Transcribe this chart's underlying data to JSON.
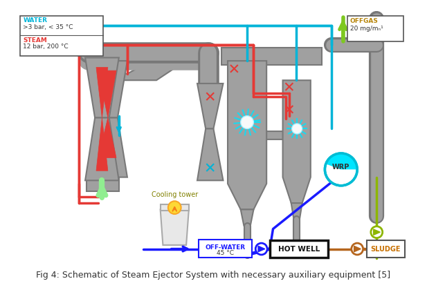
{
  "title": "Fig 4: Schematic of Steam Ejector System with necessary auxiliary equipment [5]",
  "title_fontsize": 9,
  "title_color": "#333333",
  "background_color": "#ffffff",
  "legend_water_l1": "WATER",
  "legend_water_l2": ">3 bar, < 35 °C",
  "legend_steam_l1": "STEAM",
  "legend_steam_l2": "12 bar, 200 °C",
  "legend_offgas_l1": "OFFGAS",
  "legend_offgas_l2": "20 mg/mₙ¹",
  "legend_offwater_l1": "OFF-WATER",
  "legend_offwater_l2": "45 °C",
  "legend_hotwell": "HOT WELL",
  "legend_sludge": "SLUDGE",
  "legend_cooling": "Cooling tower",
  "legend_wrp": "WRP",
  "color_water": "#00b4d8",
  "color_steam": "#e53935",
  "color_blue": "#1a1aff",
  "color_blue_pump": "#2255cc",
  "color_green_arrow": "#90ee90",
  "color_olive": "#8db600",
  "color_brown": "#b5651d",
  "color_lime": "#7ec820",
  "color_gray_body": "#a0a0a0",
  "color_gray_dark": "#787878",
  "color_gray_light": "#c8c8c8",
  "color_offgas_text": "#b8860b",
  "color_cooling_text": "#808000"
}
